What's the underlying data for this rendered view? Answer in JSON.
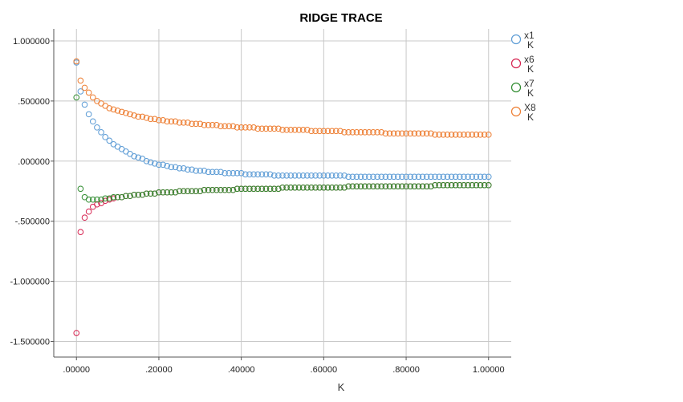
{
  "chart_data": {
    "type": "scatter",
    "title": "RIDGE TRACE",
    "xlabel": "K",
    "ylabel": "",
    "xlim": [
      -0.055,
      1.055
    ],
    "ylim": [
      -1.63,
      1.1
    ],
    "grid": true,
    "legend_position": "right",
    "xticks": [
      {
        "value": 0.0,
        "label": ".00000"
      },
      {
        "value": 0.2,
        "label": ".20000"
      },
      {
        "value": 0.4,
        "label": ".40000"
      },
      {
        "value": 0.6,
        "label": ".60000"
      },
      {
        "value": 0.8,
        "label": ".80000"
      },
      {
        "value": 1.0,
        "label": "1.00000"
      }
    ],
    "yticks": [
      {
        "value": 1.0,
        "label": "1.000000"
      },
      {
        "value": 0.5,
        "label": ".500000"
      },
      {
        "value": 0.0,
        "label": ".000000"
      },
      {
        "value": -0.5,
        "label": "-.500000"
      },
      {
        "value": -1.0,
        "label": "-1.000000"
      },
      {
        "value": -1.5,
        "label": "-1.500000"
      }
    ],
    "x": [
      0.0,
      0.01,
      0.02,
      0.03,
      0.04,
      0.05,
      0.06,
      0.07,
      0.08,
      0.09,
      0.1,
      0.11,
      0.12,
      0.13,
      0.14,
      0.15,
      0.16,
      0.17,
      0.18,
      0.19,
      0.2,
      0.21,
      0.22,
      0.23,
      0.24,
      0.25,
      0.26,
      0.27,
      0.28,
      0.29,
      0.3,
      0.31,
      0.32,
      0.33,
      0.34,
      0.35,
      0.36,
      0.37,
      0.38,
      0.39,
      0.4,
      0.41,
      0.42,
      0.43,
      0.44,
      0.45,
      0.46,
      0.47,
      0.48,
      0.49,
      0.5,
      0.51,
      0.52,
      0.53,
      0.54,
      0.55,
      0.56,
      0.57,
      0.58,
      0.59,
      0.6,
      0.61,
      0.62,
      0.63,
      0.64,
      0.65,
      0.66,
      0.67,
      0.68,
      0.69,
      0.7,
      0.71,
      0.72,
      0.73,
      0.74,
      0.75,
      0.76,
      0.77,
      0.78,
      0.79,
      0.8,
      0.81,
      0.82,
      0.83,
      0.84,
      0.85,
      0.86,
      0.87,
      0.88,
      0.89,
      0.9,
      0.91,
      0.92,
      0.93,
      0.94,
      0.95,
      0.96,
      0.97,
      0.98,
      0.99,
      1.0
    ],
    "series": [
      {
        "name": "x1\nK",
        "color": "#5b9bd5",
        "values": [
          0.82,
          0.58,
          0.47,
          0.39,
          0.33,
          0.28,
          0.24,
          0.2,
          0.17,
          0.14,
          0.12,
          0.1,
          0.08,
          0.06,
          0.04,
          0.03,
          0.02,
          0.0,
          -0.01,
          -0.02,
          -0.03,
          -0.03,
          -0.04,
          -0.05,
          -0.05,
          -0.06,
          -0.06,
          -0.07,
          -0.07,
          -0.08,
          -0.08,
          -0.08,
          -0.09,
          -0.09,
          -0.09,
          -0.09,
          -0.1,
          -0.1,
          -0.1,
          -0.1,
          -0.1,
          -0.11,
          -0.11,
          -0.11,
          -0.11,
          -0.11,
          -0.11,
          -0.11,
          -0.12,
          -0.12,
          -0.12,
          -0.12,
          -0.12,
          -0.12,
          -0.12,
          -0.12,
          -0.12,
          -0.12,
          -0.12,
          -0.12,
          -0.12,
          -0.12,
          -0.12,
          -0.12,
          -0.12,
          -0.12,
          -0.13,
          -0.13,
          -0.13,
          -0.13,
          -0.13,
          -0.13,
          -0.13,
          -0.13,
          -0.13,
          -0.13,
          -0.13,
          -0.13,
          -0.13,
          -0.13,
          -0.13,
          -0.13,
          -0.13,
          -0.13,
          -0.13,
          -0.13,
          -0.13,
          -0.13,
          -0.13,
          -0.13,
          -0.13,
          -0.13,
          -0.13,
          -0.13,
          -0.13,
          -0.13,
          -0.13,
          -0.13,
          -0.13,
          -0.13,
          -0.13
        ]
      },
      {
        "name": "x6\nK",
        "color": "#d6204e",
        "values": [
          -1.43,
          -0.59,
          -0.47,
          -0.42,
          -0.38,
          -0.36,
          -0.35,
          -0.33,
          -0.32,
          -0.31,
          -0.3,
          -0.3,
          -0.29,
          -0.29,
          -0.28,
          -0.28,
          -0.28,
          -0.27,
          -0.27,
          -0.27,
          -0.26,
          -0.26,
          -0.26,
          -0.26,
          -0.26,
          -0.25,
          -0.25,
          -0.25,
          -0.25,
          -0.25,
          -0.25,
          -0.24,
          -0.24,
          -0.24,
          -0.24,
          -0.24,
          -0.24,
          -0.24,
          -0.24,
          -0.23,
          -0.23,
          -0.23,
          -0.23,
          -0.23,
          -0.23,
          -0.23,
          -0.23,
          -0.23,
          -0.23,
          -0.23,
          -0.22,
          -0.22,
          -0.22,
          -0.22,
          -0.22,
          -0.22,
          -0.22,
          -0.22,
          -0.22,
          -0.22,
          -0.22,
          -0.22,
          -0.22,
          -0.22,
          -0.22,
          -0.22,
          -0.21,
          -0.21,
          -0.21,
          -0.21,
          -0.21,
          -0.21,
          -0.21,
          -0.21,
          -0.21,
          -0.21,
          -0.21,
          -0.21,
          -0.21,
          -0.21,
          -0.21,
          -0.21,
          -0.21,
          -0.21,
          -0.21,
          -0.21,
          -0.21,
          -0.2,
          -0.2,
          -0.2,
          -0.2,
          -0.2,
          -0.2,
          -0.2,
          -0.2,
          -0.2,
          -0.2,
          -0.2,
          -0.2,
          -0.2,
          -0.2
        ]
      },
      {
        "name": "x7\nK",
        "color": "#2e8b2e",
        "values": [
          0.53,
          -0.23,
          -0.3,
          -0.32,
          -0.32,
          -0.32,
          -0.32,
          -0.31,
          -0.31,
          -0.3,
          -0.3,
          -0.3,
          -0.29,
          -0.29,
          -0.28,
          -0.28,
          -0.28,
          -0.27,
          -0.27,
          -0.27,
          -0.26,
          -0.26,
          -0.26,
          -0.26,
          -0.26,
          -0.25,
          -0.25,
          -0.25,
          -0.25,
          -0.25,
          -0.25,
          -0.24,
          -0.24,
          -0.24,
          -0.24,
          -0.24,
          -0.24,
          -0.24,
          -0.24,
          -0.23,
          -0.23,
          -0.23,
          -0.23,
          -0.23,
          -0.23,
          -0.23,
          -0.23,
          -0.23,
          -0.23,
          -0.23,
          -0.22,
          -0.22,
          -0.22,
          -0.22,
          -0.22,
          -0.22,
          -0.22,
          -0.22,
          -0.22,
          -0.22,
          -0.22,
          -0.22,
          -0.22,
          -0.22,
          -0.22,
          -0.22,
          -0.21,
          -0.21,
          -0.21,
          -0.21,
          -0.21,
          -0.21,
          -0.21,
          -0.21,
          -0.21,
          -0.21,
          -0.21,
          -0.21,
          -0.21,
          -0.21,
          -0.21,
          -0.21,
          -0.21,
          -0.21,
          -0.21,
          -0.21,
          -0.21,
          -0.2,
          -0.2,
          -0.2,
          -0.2,
          -0.2,
          -0.2,
          -0.2,
          -0.2,
          -0.2,
          -0.2,
          -0.2,
          -0.2,
          -0.2,
          -0.2
        ]
      },
      {
        "name": "X8\nK",
        "color": "#ed7d31",
        "values": [
          0.83,
          0.67,
          0.61,
          0.57,
          0.53,
          0.5,
          0.48,
          0.46,
          0.44,
          0.43,
          0.42,
          0.41,
          0.4,
          0.39,
          0.38,
          0.37,
          0.37,
          0.36,
          0.35,
          0.35,
          0.34,
          0.34,
          0.33,
          0.33,
          0.33,
          0.32,
          0.32,
          0.32,
          0.31,
          0.31,
          0.31,
          0.3,
          0.3,
          0.3,
          0.3,
          0.29,
          0.29,
          0.29,
          0.29,
          0.28,
          0.28,
          0.28,
          0.28,
          0.28,
          0.27,
          0.27,
          0.27,
          0.27,
          0.27,
          0.27,
          0.26,
          0.26,
          0.26,
          0.26,
          0.26,
          0.26,
          0.26,
          0.25,
          0.25,
          0.25,
          0.25,
          0.25,
          0.25,
          0.25,
          0.25,
          0.24,
          0.24,
          0.24,
          0.24,
          0.24,
          0.24,
          0.24,
          0.24,
          0.24,
          0.24,
          0.23,
          0.23,
          0.23,
          0.23,
          0.23,
          0.23,
          0.23,
          0.23,
          0.23,
          0.23,
          0.23,
          0.23,
          0.22,
          0.22,
          0.22,
          0.22,
          0.22,
          0.22,
          0.22,
          0.22,
          0.22,
          0.22,
          0.22,
          0.22,
          0.22,
          0.22
        ]
      }
    ]
  }
}
